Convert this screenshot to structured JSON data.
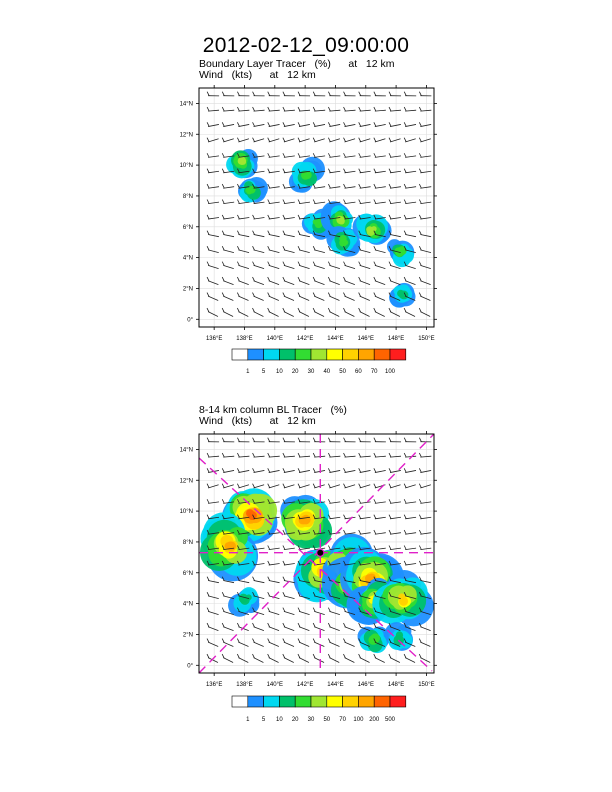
{
  "main_title": "2012-02-12_09:00:00",
  "panels": [
    {
      "title_line1": "Boundary Layer Tracer   (%)      at   12 km",
      "title_line2": "Wind   (kts)      at   12 km"
    },
    {
      "title_line1": "8-14 km column BL Tracer   (%)",
      "title_line2": "Wind   (kts)      at   12 km"
    }
  ],
  "chart_data": [
    {
      "type": "heatmap",
      "title": "Boundary Layer Tracer (%) at 12 km",
      "overlay": "Wind (kts) at 12 km, wind barbs",
      "xlabel": "",
      "ylabel": "",
      "xlim": [
        135,
        150.5
      ],
      "ylim": [
        -0.5,
        15
      ],
      "x_ticks": [
        "136°E",
        "138°E",
        "140°E",
        "142°E",
        "144°E",
        "146°E",
        "148°E",
        "150°E"
      ],
      "y_ticks": [
        "0°",
        "2°N",
        "4°N",
        "6°N",
        "8°N",
        "10°N",
        "12°N",
        "14°N"
      ],
      "grid": true,
      "colorbar": {
        "labels": [
          "1",
          "5",
          "10",
          "20",
          "30",
          "40",
          "50",
          "60",
          "70",
          "100"
        ],
        "colors": [
          "#ffffff",
          "#1e90ff",
          "#00d8f0",
          "#00c06a",
          "#32dc32",
          "#a0e632",
          "#ffff00",
          "#ffd200",
          "#ffa500",
          "#ff6400",
          "#ff1e1e"
        ]
      },
      "tracer_areas": [
        {
          "lon": 137.8,
          "lat": 10.2,
          "level": 5
        },
        {
          "lon": 138.4,
          "lat": 8.4,
          "level": 4
        },
        {
          "lon": 142.1,
          "lat": 9.3,
          "level": 4
        },
        {
          "lon": 142.8,
          "lat": 6.2,
          "level": 4
        },
        {
          "lon": 144.3,
          "lat": 6.5,
          "level": 5
        },
        {
          "lon": 144.6,
          "lat": 5.1,
          "level": 4
        },
        {
          "lon": 146.4,
          "lat": 5.8,
          "level": 5
        },
        {
          "lon": 148.3,
          "lat": 4.3,
          "level": 4
        },
        {
          "lon": 148.4,
          "lat": 1.7,
          "level": 3
        }
      ]
    },
    {
      "type": "heatmap",
      "title": "8-14 km column BL Tracer (%)",
      "overlay": "Wind (kts) at 12 km, wind barbs",
      "xlabel": "",
      "ylabel": "",
      "xlim": [
        135,
        150.5
      ],
      "ylim": [
        -0.5,
        15
      ],
      "x_ticks": [
        "136°E",
        "138°E",
        "140°E",
        "142°E",
        "144°E",
        "146°E",
        "148°E",
        "150°E"
      ],
      "y_ticks": [
        "0°",
        "2°N",
        "4°N",
        "6°N",
        "8°N",
        "10°N",
        "12°N",
        "14°N"
      ],
      "grid": true,
      "colorbar": {
        "labels": [
          "1",
          "5",
          "10",
          "20",
          "30",
          "50",
          "70",
          "100",
          "200",
          "500"
        ],
        "colors": [
          "#ffffff",
          "#1e90ff",
          "#00d8f0",
          "#00c06a",
          "#32dc32",
          "#a0e632",
          "#ffff00",
          "#ffd200",
          "#ffa500",
          "#ff6400",
          "#ff1e1e"
        ]
      },
      "center_marker": {
        "lon": 143.0,
        "lat": 7.3
      },
      "cross_section_lines": "magenta dashed",
      "tracer_areas": [
        {
          "lon": 138.5,
          "lat": 9.8,
          "level": 9
        },
        {
          "lon": 137.0,
          "lat": 7.8,
          "level": 8
        },
        {
          "lon": 142.0,
          "lat": 9.3,
          "level": 8
        },
        {
          "lon": 143.4,
          "lat": 6.0,
          "level": 8
        },
        {
          "lon": 144.5,
          "lat": 6.4,
          "level": 7
        },
        {
          "lon": 145.3,
          "lat": 5.3,
          "level": 8
        },
        {
          "lon": 146.3,
          "lat": 5.6,
          "level": 8
        },
        {
          "lon": 146.6,
          "lat": 4.2,
          "level": 6
        },
        {
          "lon": 148.4,
          "lat": 4.3,
          "level": 7
        },
        {
          "lon": 138.1,
          "lat": 4.3,
          "level": 3
        },
        {
          "lon": 146.6,
          "lat": 1.6,
          "level": 4
        },
        {
          "lon": 148.3,
          "lat": 1.8,
          "level": 3
        }
      ]
    }
  ]
}
